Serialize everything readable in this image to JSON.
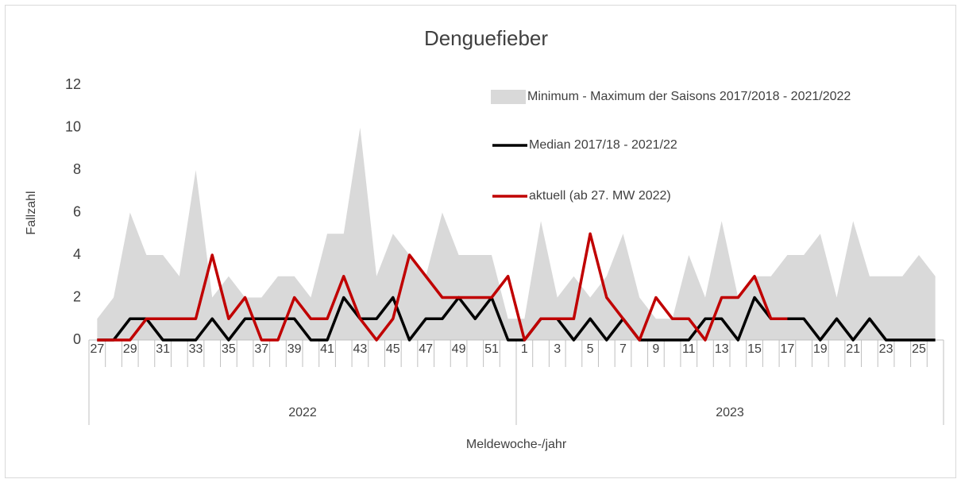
{
  "chart_data": {
    "type": "line",
    "title": "Denguefieber",
    "y_label": "Fallzahl",
    "x_label": "Meldewoche-/jahr",
    "categories": [
      "27",
      null,
      "29",
      null,
      "31",
      null,
      "33",
      null,
      "35",
      null,
      "37",
      null,
      "39",
      null,
      "41",
      null,
      "43",
      null,
      "45",
      null,
      "47",
      null,
      "49",
      null,
      "51",
      null,
      "1",
      null,
      "3",
      null,
      "5",
      null,
      "7",
      null,
      "9",
      null,
      "11",
      null,
      "13",
      null,
      "15",
      null,
      "17",
      null,
      "19",
      null,
      "21",
      null,
      "23",
      null,
      "25",
      null
    ],
    "groups": [
      "2022",
      "2023"
    ],
    "ylim": [
      0,
      12
    ],
    "yticks": [
      0,
      2,
      4,
      6,
      8,
      10,
      12
    ],
    "legend": "top-right",
    "area": {
      "name": "Minimum - Maximum der Saisons 2017/2018 - 2021/2022",
      "color": "#d9d9d9",
      "values": [
        1,
        2,
        6,
        4,
        4,
        3,
        8,
        2,
        3,
        2,
        2,
        3,
        3,
        2,
        5,
        5,
        10,
        3,
        5,
        4,
        3,
        6,
        4,
        4,
        4,
        1,
        1,
        5.6,
        2,
        3,
        2,
        3,
        5,
        2,
        1,
        1,
        4,
        2,
        5.6,
        2,
        3,
        3,
        4,
        4,
        5,
        2,
        5.6,
        3,
        3,
        3,
        4,
        3
      ]
    },
    "series": [
      {
        "name": "Median 2017/18 - 2021/22",
        "color": "#000000",
        "values": [
          0,
          0,
          1,
          1,
          0,
          0,
          0,
          1,
          0,
          1,
          1,
          1,
          1,
          0,
          0,
          2,
          1,
          1,
          2,
          0,
          1,
          1,
          2,
          1,
          2,
          0,
          0,
          1,
          1,
          0,
          1,
          0,
          1,
          0,
          0,
          0,
          0,
          1,
          1,
          0,
          2,
          1,
          1,
          1,
          0,
          1,
          0,
          1,
          0,
          0,
          0,
          0
        ]
      },
      {
        "name": "aktuell (ab 27. MW 2022)",
        "color": "#c00000",
        "values": [
          0,
          0,
          0,
          1,
          1,
          1,
          1,
          4,
          1,
          2,
          0,
          0,
          2,
          1,
          1,
          3,
          1,
          0,
          1,
          4,
          3,
          2,
          2,
          2,
          2,
          3,
          0,
          1,
          1,
          1,
          5,
          2,
          1,
          0,
          2,
          1,
          1,
          0,
          2,
          2,
          3,
          1,
          1,
          null,
          null,
          null,
          null,
          null,
          null,
          null,
          null,
          null
        ]
      }
    ]
  }
}
